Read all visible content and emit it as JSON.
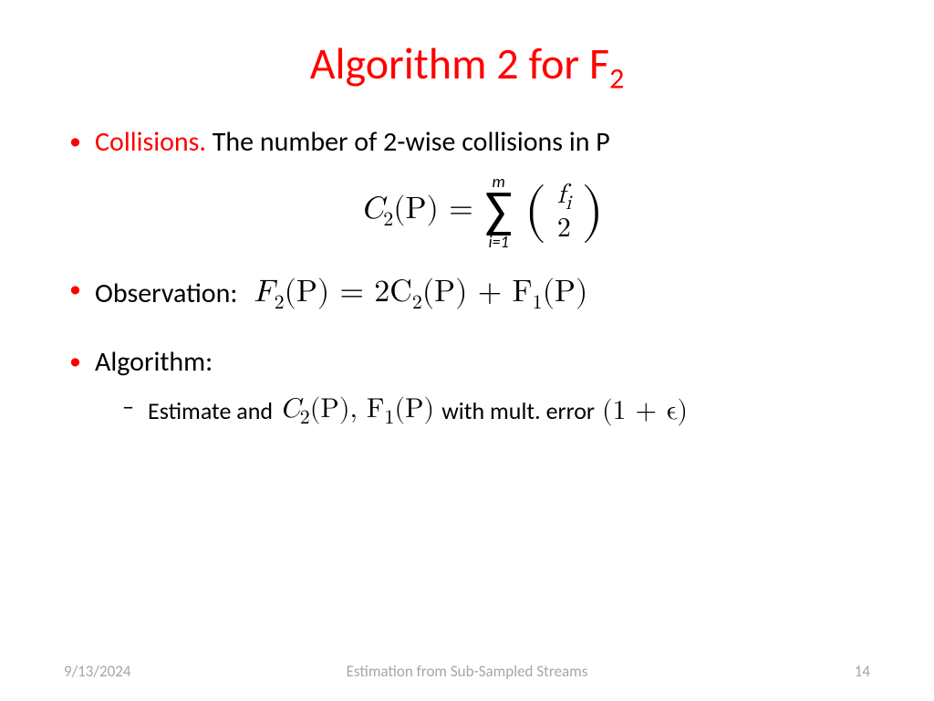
{
  "slide": {
    "title_prefix": "Algorithm 2 for F",
    "title_sub": "2",
    "title_color": "#ff0000",
    "body_color": "#000000",
    "bullet_color": "#ff0000",
    "background_color": "#ffffff",
    "fontsize_title": 48,
    "fontsize_body": 30,
    "fontsize_sub": 26,
    "bullets": {
      "b1": {
        "lead": "Collisions.",
        "text": " The number of 2-wise collisions in P"
      },
      "formula1": {
        "lhs": "C",
        "lhs_sub": "2",
        "lhs_arg": "(P) = ",
        "sum_upper": "m",
        "sum_lower": "i=1",
        "binom_top": "f",
        "binom_top_sub": "i",
        "binom_bot": "2"
      },
      "b2": {
        "label": "Observation:",
        "formula": {
          "F2": "F",
          "F2sub": "2",
          "eq": "(P) = 2C",
          "C2sub": "2",
          "mid": "(P) + F",
          "F1sub": "1",
          "end": "(P)"
        }
      },
      "b3": {
        "label": "Algorithm:",
        "sub": {
          "pre": "Estimate and ",
          "math1": "C",
          "m1sub": "2",
          "m1arg": "(P), F",
          "m2sub": "1",
          "m2arg": "(P)",
          "mid": " with mult. error",
          "err": "(1 + ϵ)"
        }
      }
    },
    "footer": {
      "date": "9/13/2024",
      "center": "Estimation from Sub-Sampled Streams",
      "page": "14",
      "color": "#a6a6a6"
    }
  }
}
